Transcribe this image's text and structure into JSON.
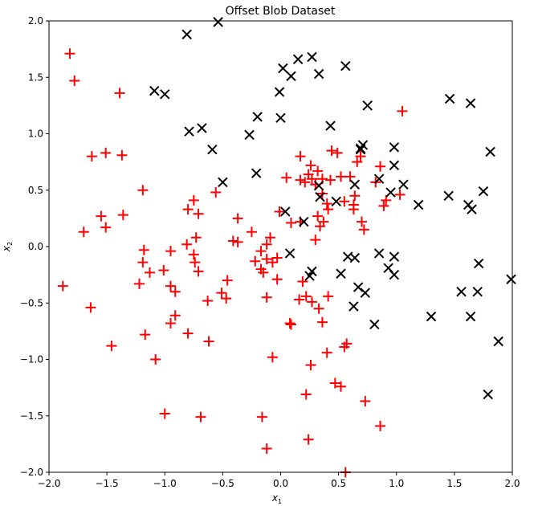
{
  "chart_data": {
    "type": "scatter",
    "title": "Offset Blob Dataset",
    "xlabel": "x",
    "xlabel_sub": "1",
    "ylabel": "x",
    "ylabel_sub": "2",
    "xlim": [
      -2.0,
      2.0
    ],
    "ylim": [
      -2.0,
      2.0
    ],
    "xticks": [
      -2.0,
      -1.5,
      -1.0,
      -0.5,
      0.0,
      0.5,
      1.0,
      1.5,
      2.0
    ],
    "yticks": [
      -2.0,
      -1.5,
      -1.0,
      -0.5,
      0.0,
      0.5,
      1.0,
      1.5,
      2.0
    ],
    "xtick_labels": [
      "−2.0",
      "−1.5",
      "−1.0",
      "−0.5",
      "0.0",
      "0.5",
      "1.0",
      "1.5",
      "2.0"
    ],
    "ytick_labels": [
      "−2.0",
      "−1.5",
      "−1.0",
      "−0.5",
      "0.0",
      "0.5",
      "1.0",
      "1.5",
      "2.0"
    ],
    "grid": false,
    "series": [
      {
        "marker": "plus",
        "color": "#ff0000",
        "points": [
          [
            -1.82,
            1.71
          ],
          [
            -1.78,
            1.47
          ],
          [
            -1.39,
            1.36
          ],
          [
            -1.63,
            0.8
          ],
          [
            -1.51,
            0.83
          ],
          [
            -1.37,
            0.81
          ],
          [
            -1.7,
            0.13
          ],
          [
            -1.55,
            0.27
          ],
          [
            -1.51,
            0.17
          ],
          [
            -1.36,
            0.28
          ],
          [
            -1.19,
            0.5
          ],
          [
            -0.75,
            0.41
          ],
          [
            -0.8,
            0.33
          ],
          [
            -0.71,
            0.29
          ],
          [
            -0.56,
            0.48
          ],
          [
            -1.88,
            -0.35
          ],
          [
            -1.64,
            -0.54
          ],
          [
            -1.46,
            -0.88
          ],
          [
            -1.18,
            -0.03
          ],
          [
            -1.19,
            -0.14
          ],
          [
            -1.22,
            -0.33
          ],
          [
            -1.13,
            -0.23
          ],
          [
            -1.17,
            -0.78
          ],
          [
            -1.08,
            -1.0
          ],
          [
            -1.0,
            -1.48
          ],
          [
            -0.69,
            -1.51
          ],
          [
            -0.95,
            -0.04
          ],
          [
            -1.01,
            -0.21
          ],
          [
            -0.95,
            -0.35
          ],
          [
            -0.91,
            -0.4
          ],
          [
            -0.91,
            -0.61
          ],
          [
            -0.95,
            -0.68
          ],
          [
            -0.8,
            -0.77
          ],
          [
            -0.62,
            -0.84
          ],
          [
            -0.81,
            0.02
          ],
          [
            -0.73,
            0.08
          ],
          [
            -0.75,
            -0.07
          ],
          [
            -0.74,
            -0.14
          ],
          [
            -0.71,
            -0.22
          ],
          [
            -0.63,
            -0.48
          ],
          [
            -0.47,
            -0.46
          ],
          [
            -0.46,
            -0.3
          ],
          [
            -0.51,
            -0.41
          ],
          [
            -0.41,
            0.05
          ],
          [
            -0.37,
            0.25
          ],
          [
            -0.37,
            0.04
          ],
          [
            -0.25,
            0.13
          ],
          [
            -0.22,
            -0.13
          ],
          [
            -0.17,
            -0.04
          ],
          [
            -0.17,
            -0.2
          ],
          [
            -0.12,
            -0.11
          ],
          [
            -0.15,
            -0.23
          ],
          [
            -0.07,
            -0.14
          ],
          [
            -0.12,
            -0.45
          ],
          [
            -0.12,
            0.02
          ],
          [
            -0.09,
            0.08
          ],
          [
            -0.03,
            -0.29
          ],
          [
            -0.03,
            -0.1
          ],
          [
            -0.07,
            -0.98
          ],
          [
            -0.16,
            -1.51
          ],
          [
            -0.12,
            -1.79
          ],
          [
            -0.01,
            0.31
          ],
          [
            0.05,
            0.61
          ],
          [
            0.09,
            0.21
          ],
          [
            0.17,
            0.8
          ],
          [
            0.17,
            0.59
          ],
          [
            0.21,
            0.57
          ],
          [
            0.24,
            0.64
          ],
          [
            0.26,
            0.72
          ],
          [
            0.27,
            0.6
          ],
          [
            0.32,
            0.67
          ],
          [
            0.3,
            0.55
          ],
          [
            0.36,
            0.6
          ],
          [
            0.36,
            0.47
          ],
          [
            0.32,
            0.27
          ],
          [
            0.34,
            0.18
          ],
          [
            0.37,
            0.22
          ],
          [
            0.3,
            0.06
          ],
          [
            0.17,
            0.22
          ],
          [
            0.16,
            -0.47
          ],
          [
            0.19,
            -0.31
          ],
          [
            0.22,
            -0.44
          ],
          [
            0.27,
            -0.49
          ],
          [
            0.33,
            -0.55
          ],
          [
            0.36,
            -0.67
          ],
          [
            0.41,
            -0.44
          ],
          [
            0.08,
            -0.68
          ],
          [
            0.09,
            -0.69
          ],
          [
            0.4,
            -0.94
          ],
          [
            0.26,
            -1.05
          ],
          [
            0.22,
            -1.31
          ],
          [
            0.24,
            -1.71
          ],
          [
            0.47,
            -1.21
          ],
          [
            0.52,
            -1.24
          ],
          [
            0.55,
            -0.89
          ],
          [
            0.57,
            -0.86
          ],
          [
            0.56,
            -2.0
          ],
          [
            0.41,
            0.33
          ],
          [
            0.4,
            0.38
          ],
          [
            0.44,
            0.85
          ],
          [
            0.49,
            0.83
          ],
          [
            0.43,
            0.59
          ],
          [
            0.52,
            0.62
          ],
          [
            0.55,
            0.4
          ],
          [
            0.6,
            0.62
          ],
          [
            0.63,
            0.33
          ],
          [
            0.66,
            0.75
          ],
          [
            0.69,
            0.8
          ],
          [
            0.63,
            0.37
          ],
          [
            0.64,
            0.45
          ],
          [
            0.7,
            0.22
          ],
          [
            0.72,
            0.15
          ],
          [
            0.82,
            0.57
          ],
          [
            0.86,
            0.71
          ],
          [
            0.89,
            0.36
          ],
          [
            0.91,
            0.41
          ],
          [
            1.03,
            0.46
          ],
          [
            1.05,
            1.2
          ],
          [
            0.73,
            -1.37
          ],
          [
            0.86,
            -1.59
          ]
        ]
      },
      {
        "marker": "x",
        "color": "#000000",
        "points": [
          [
            -0.81,
            1.88
          ],
          [
            -0.54,
            1.99
          ],
          [
            -1.09,
            1.38
          ],
          [
            -1.0,
            1.35
          ],
          [
            -0.79,
            1.02
          ],
          [
            -0.68,
            1.05
          ],
          [
            -0.59,
            0.86
          ],
          [
            -0.5,
            0.57
          ],
          [
            -0.2,
            1.15
          ],
          [
            -0.27,
            0.99
          ],
          [
            -0.21,
            0.65
          ],
          [
            0.02,
            1.58
          ],
          [
            0.09,
            1.51
          ],
          [
            0.15,
            1.66
          ],
          [
            0.27,
            1.68
          ],
          [
            0.33,
            1.53
          ],
          [
            0.56,
            1.6
          ],
          [
            -0.01,
            1.37
          ],
          [
            0.0,
            1.14
          ],
          [
            0.43,
            1.07
          ],
          [
            0.75,
            1.25
          ],
          [
            0.69,
            0.86
          ],
          [
            0.71,
            0.9
          ],
          [
            0.69,
            0.87
          ],
          [
            0.98,
            0.88
          ],
          [
            0.98,
            0.72
          ],
          [
            0.85,
            0.6
          ],
          [
            0.95,
            0.48
          ],
          [
            1.06,
            0.55
          ],
          [
            1.19,
            0.37
          ],
          [
            0.64,
            0.55
          ],
          [
            0.48,
            0.4
          ],
          [
            0.34,
            0.44
          ],
          [
            0.33,
            0.54
          ],
          [
            0.04,
            0.31
          ],
          [
            0.2,
            0.22
          ],
          [
            1.46,
            1.31
          ],
          [
            1.64,
            1.27
          ],
          [
            1.81,
            0.84
          ],
          [
            1.45,
            0.45
          ],
          [
            1.62,
            0.37
          ],
          [
            1.65,
            0.33
          ],
          [
            1.75,
            0.49
          ],
          [
            0.08,
            -0.06
          ],
          [
            0.27,
            -0.22
          ],
          [
            0.25,
            -0.26
          ],
          [
            0.52,
            -0.24
          ],
          [
            0.58,
            -0.09
          ],
          [
            0.64,
            -0.1
          ],
          [
            0.67,
            -0.36
          ],
          [
            0.73,
            -0.41
          ],
          [
            0.63,
            -0.53
          ],
          [
            0.85,
            -0.06
          ],
          [
            0.93,
            -0.19
          ],
          [
            0.98,
            -0.09
          ],
          [
            0.98,
            -0.25
          ],
          [
            0.81,
            -0.69
          ],
          [
            1.3,
            -0.62
          ],
          [
            1.56,
            -0.4
          ],
          [
            1.71,
            -0.15
          ],
          [
            1.7,
            -0.4
          ],
          [
            1.64,
            -0.62
          ],
          [
            1.99,
            -0.29
          ],
          [
            1.88,
            -0.84
          ],
          [
            1.79,
            -1.31
          ]
        ]
      }
    ]
  }
}
